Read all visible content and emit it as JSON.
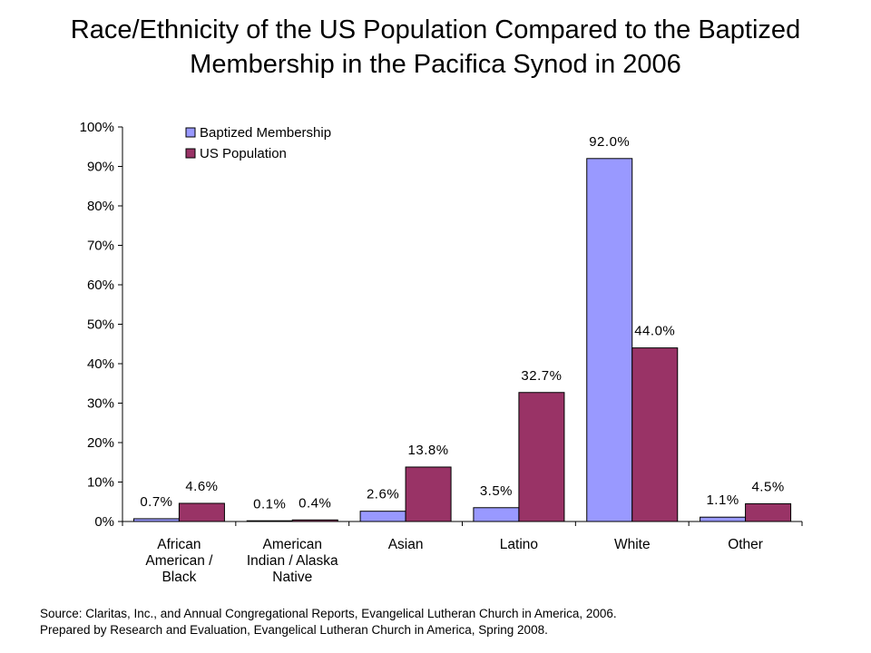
{
  "title_line1": "Race/Ethnicity of the US Population Compared to the Baptized",
  "title_line2": "Membership in the Pacifica Synod in 2006",
  "source_line1": "Source:  Claritas, Inc., and Annual Congregational Reports, Evangelical Lutheran Church in America, 2006.",
  "source_line2": "Prepared by Research and Evaluation, Evangelical Lutheran Church in America, Spring 2008.",
  "chart_data": {
    "type": "bar",
    "title": "Race/Ethnicity of the US Population Compared to the Baptized Membership in the Pacifica Synod in 2006",
    "categories": [
      [
        "African",
        "American /",
        "Black"
      ],
      [
        "American",
        "Indian / Alaska",
        "Native"
      ],
      [
        "Asian"
      ],
      [
        "Latino"
      ],
      [
        "White"
      ],
      [
        "Other"
      ]
    ],
    "series": [
      {
        "name": "Baptized Membership",
        "color": "#9999ff",
        "values": [
          0.7,
          0.1,
          2.6,
          3.5,
          92.0,
          1.1
        ],
        "labels": [
          "0.7%",
          "0.1%",
          "2.6%",
          "3.5%",
          "92.0%",
          "1.1%"
        ]
      },
      {
        "name": "US Population",
        "color": "#993366",
        "values": [
          4.6,
          0.4,
          13.8,
          32.7,
          44.0,
          4.5
        ],
        "labels": [
          "4.6%",
          "0.4%",
          "13.8%",
          "32.7%",
          "44.0%",
          "4.5%"
        ]
      }
    ],
    "yticks": [
      "0%",
      "10%",
      "20%",
      "30%",
      "40%",
      "50%",
      "60%",
      "70%",
      "80%",
      "90%",
      "100%"
    ],
    "ylim": [
      0,
      100
    ],
    "legend": "top-left",
    "grid": false
  }
}
